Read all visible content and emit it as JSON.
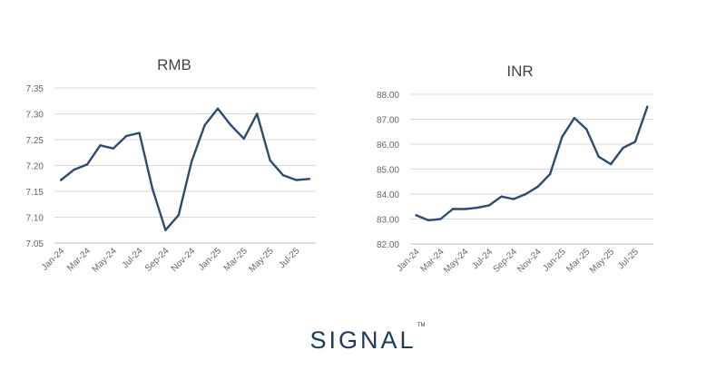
{
  "brand": {
    "name": "SIGNAL",
    "tm": "TM"
  },
  "colors": {
    "line": "#2f4b6e",
    "brand": "#1f3a5a"
  },
  "chart_data": [
    {
      "type": "line",
      "title": "RMB",
      "ylim": [
        7.05,
        7.35
      ],
      "yticks": [
        "7.05",
        "7.10",
        "7.15",
        "7.20",
        "7.25",
        "7.30",
        "7.35"
      ],
      "xticks": [
        "Jan-24",
        "Mar-24",
        "May-24",
        "Jul-24",
        "Sep-24",
        "Nov-24",
        "Jan-25",
        "Mar-25",
        "May-25",
        "Jul-25"
      ],
      "grid": true,
      "series": [
        {
          "values": [
            7.172,
            7.192,
            7.202,
            7.239,
            7.233,
            7.257,
            7.263,
            7.155,
            7.075,
            7.104,
            7.208,
            7.278,
            7.31,
            7.278,
            7.252,
            7.3,
            7.21,
            7.181,
            7.172,
            7.174
          ]
        }
      ]
    },
    {
      "type": "line",
      "title": "INR",
      "ylim": [
        82.0,
        88.0
      ],
      "yticks": [
        "82.00",
        "83.00",
        "84.00",
        "85.00",
        "86.00",
        "87.00",
        "88.00"
      ],
      "xticks": [
        "Jan-24",
        "Mar-24",
        "May-24",
        "Jul-24",
        "Sep-24",
        "Nov-24",
        "Jan-25",
        "Mar-25",
        "May-25",
        "Jul-25"
      ],
      "grid": true,
      "series": [
        {
          "values": [
            83.15,
            82.95,
            83.0,
            83.4,
            83.4,
            83.45,
            83.55,
            83.9,
            83.8,
            84.0,
            84.3,
            84.8,
            86.3,
            87.05,
            86.6,
            85.5,
            85.2,
            85.85,
            86.1,
            87.5
          ]
        }
      ]
    }
  ]
}
